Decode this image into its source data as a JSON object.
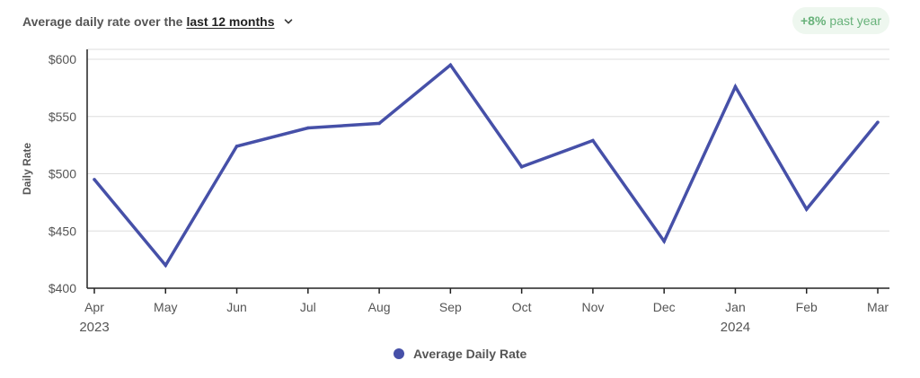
{
  "header": {
    "prefix": "Average daily rate over the",
    "range_label": "last 12 months",
    "dropdown_icon": "chevron-down-icon"
  },
  "badge": {
    "change": "+8%",
    "suffix": "past year",
    "color": "#68b27a",
    "background": "#eef7ef"
  },
  "chart_data": {
    "type": "line",
    "x": [
      "Apr",
      "May",
      "Jun",
      "Jul",
      "Aug",
      "Sep",
      "Oct",
      "Nov",
      "Dec",
      "Jan",
      "Feb",
      "Mar"
    ],
    "year_labels": [
      {
        "at": "Apr",
        "label": "2023"
      },
      {
        "at": "Jan",
        "label": "2024"
      }
    ],
    "series": [
      {
        "name": "Average Daily Rate",
        "color": "#4650a8",
        "values": [
          495,
          420,
          524,
          540,
          544,
          595,
          506,
          529,
          441,
          576,
          469,
          545
        ]
      }
    ],
    "ylabel": "Daily Rate",
    "xlabel": "",
    "ylim": [
      400,
      600
    ],
    "yticks": [
      {
        "value": 400,
        "label": "$400"
      },
      {
        "value": 450,
        "label": "$450"
      },
      {
        "value": 500,
        "label": "$500"
      },
      {
        "value": 550,
        "label": "$550"
      },
      {
        "value": 600,
        "label": "$600"
      }
    ],
    "grid": true,
    "legend_position": "bottom-center"
  }
}
